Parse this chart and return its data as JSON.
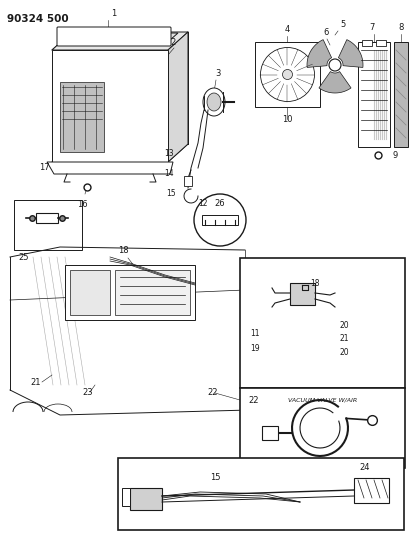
{
  "title": "90324 500",
  "bg": "#ffffff",
  "lc": "#1a1a1a",
  "gray": "#888888",
  "lightgray": "#cccccc",
  "fig_w": 4.12,
  "fig_h": 5.33,
  "dpi": 100
}
